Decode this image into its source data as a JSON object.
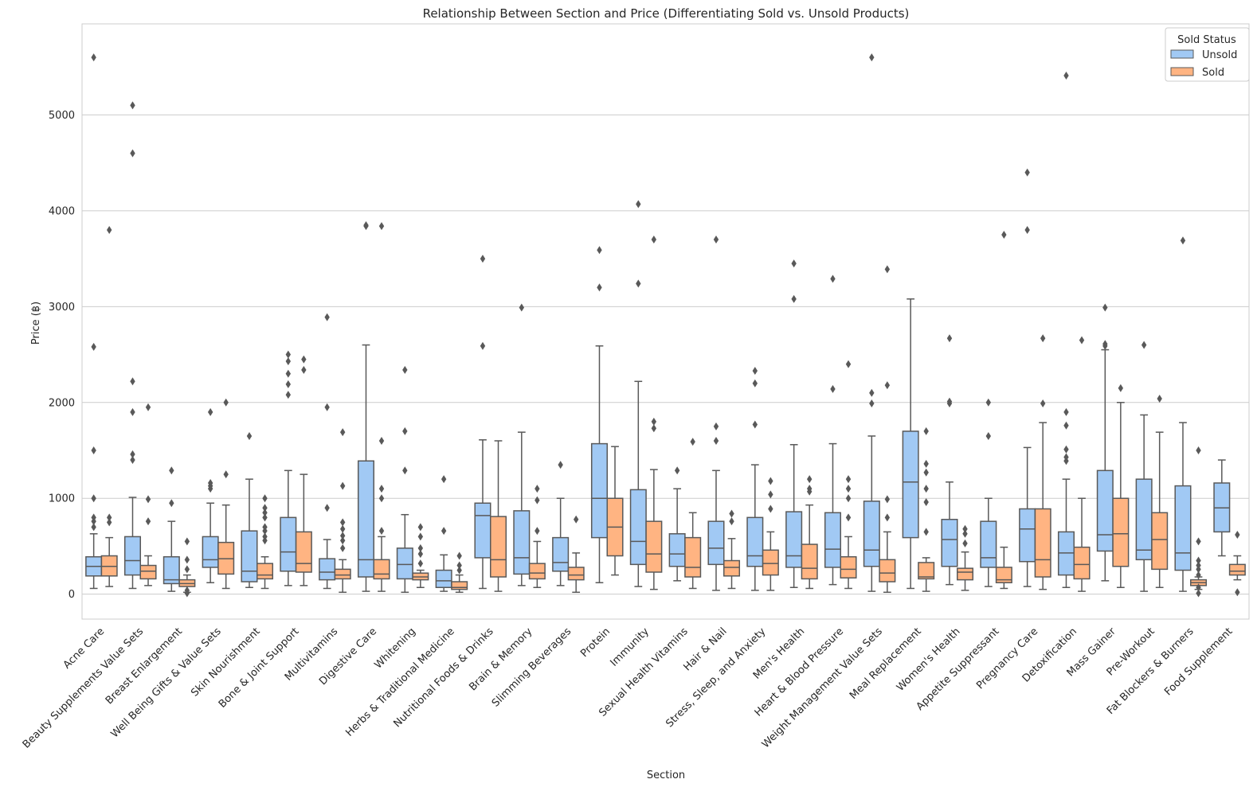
{
  "colors": {
    "unsold": "#a1c9f4",
    "sold": "#ffb482",
    "grid": "#cccccc",
    "frame": "#cccccc",
    "line": "#595959"
  },
  "chart_data": {
    "type": "box",
    "title": "Relationship Between Section and Price (Differentiating Sold vs. Unsold Products)",
    "xlabel": "Section",
    "ylabel": "Price (฿)",
    "ylim": [
      -260,
      5950
    ],
    "yticks": [
      0,
      1000,
      2000,
      3000,
      4000,
      5000
    ],
    "grid": "horizontal",
    "legend": {
      "title": "Sold Status",
      "position": "top-right",
      "entries": [
        "Unsold",
        "Sold"
      ]
    },
    "categories": [
      "Acne Care",
      "Beauty Supplements Value Sets",
      "Breast Enlargement",
      "Well Being Gifts & Value Sets",
      "Skin Nourishment",
      "Bone & Joint Support",
      "Multivitamins",
      "Digestive Care",
      "Whitening",
      "Herbs & Traditional Medicine",
      "Nutritional Foods & Drinks",
      "Brain & Memory",
      "Slimming Beverages",
      "Protein",
      "Immunity",
      "Sexual Health Vitamins",
      "Hair & Nail",
      "Stress, Sleep, and Anxiety",
      "Men's Health",
      "Heart & Blood Pressure",
      "Weight Management Value Sets",
      "Meal Replacement",
      "Women's Health",
      "Appetite Suppressant",
      "Pregnancy Care",
      "Detoxification",
      "Mass Gainer",
      "Pre-Workout",
      "Fat Blockers & Burners",
      "Food Supplement"
    ],
    "series": [
      {
        "name": "Unsold",
        "boxes": [
          {
            "min": 60,
            "q1": 190,
            "median": 290,
            "q3": 390,
            "max": 630,
            "outliers": [
              700,
              760,
              800,
              1000,
              1500,
              2580,
              5600
            ]
          },
          {
            "min": 60,
            "q1": 200,
            "median": 350,
            "q3": 600,
            "max": 1010,
            "outliers": [
              1400,
              1460,
              1900,
              2220,
              4600,
              5100
            ]
          },
          {
            "min": 30,
            "q1": 110,
            "median": 150,
            "q3": 390,
            "max": 760,
            "outliers": [
              950,
              1290
            ]
          },
          {
            "min": 120,
            "q1": 280,
            "median": 360,
            "q3": 600,
            "max": 950,
            "outliers": [
              1100,
              1130,
              1160,
              1900
            ]
          },
          {
            "min": 70,
            "q1": 130,
            "median": 240,
            "q3": 660,
            "max": 1200,
            "outliers": [
              1650
            ]
          },
          {
            "min": 90,
            "q1": 240,
            "median": 440,
            "q3": 800,
            "max": 1290,
            "outliers": [
              2080,
              2190,
              2300,
              2430,
              2500
            ]
          },
          {
            "min": 60,
            "q1": 150,
            "median": 230,
            "q3": 370,
            "max": 570,
            "outliers": [
              900,
              1950,
              2890
            ]
          },
          {
            "min": 30,
            "q1": 180,
            "median": 360,
            "q3": 1390,
            "max": 2600,
            "outliers": [
              3840,
              3850
            ]
          },
          {
            "min": 20,
            "q1": 160,
            "median": 310,
            "q3": 480,
            "max": 830,
            "outliers": [
              1290,
              1700,
              2340
            ]
          },
          {
            "min": 30,
            "q1": 70,
            "median": 140,
            "q3": 250,
            "max": 410,
            "outliers": [
              660,
              1200
            ]
          },
          {
            "min": 60,
            "q1": 380,
            "median": 820,
            "q3": 950,
            "max": 1610,
            "outliers": [
              2590,
              3500
            ]
          },
          {
            "min": 90,
            "q1": 210,
            "median": 380,
            "q3": 870,
            "max": 1690,
            "outliers": [
              2990
            ]
          },
          {
            "min": 90,
            "q1": 240,
            "median": 330,
            "q3": 590,
            "max": 1000,
            "outliers": [
              1350
            ]
          },
          {
            "min": 120,
            "q1": 590,
            "median": 1000,
            "q3": 1570,
            "max": 2590,
            "outliers": [
              3200,
              3590
            ]
          },
          {
            "min": 80,
            "q1": 310,
            "median": 550,
            "q3": 1090,
            "max": 2220,
            "outliers": [
              3240,
              4070
            ]
          },
          {
            "min": 140,
            "q1": 290,
            "median": 420,
            "q3": 630,
            "max": 1100,
            "outliers": [
              1290
            ]
          },
          {
            "min": 40,
            "q1": 310,
            "median": 480,
            "q3": 760,
            "max": 1290,
            "outliers": [
              1600,
              1750,
              3700
            ]
          },
          {
            "min": 40,
            "q1": 290,
            "median": 400,
            "q3": 800,
            "max": 1350,
            "outliers": [
              1770,
              2200,
              2330
            ]
          },
          {
            "min": 70,
            "q1": 280,
            "median": 400,
            "q3": 860,
            "max": 1560,
            "outliers": [
              3080,
              3450
            ]
          },
          {
            "min": 100,
            "q1": 280,
            "median": 470,
            "q3": 850,
            "max": 1570,
            "outliers": [
              2140,
              3290
            ]
          },
          {
            "min": 30,
            "q1": 290,
            "median": 460,
            "q3": 970,
            "max": 1650,
            "outliers": [
              1990,
              2100,
              5600
            ]
          },
          {
            "min": 60,
            "q1": 590,
            "median": 1170,
            "q3": 1700,
            "max": 3080,
            "outliers": []
          },
          {
            "min": 100,
            "q1": 290,
            "median": 570,
            "q3": 780,
            "max": 1170,
            "outliers": [
              1990,
              2010,
              2670
            ]
          },
          {
            "min": 80,
            "q1": 280,
            "median": 380,
            "q3": 760,
            "max": 1000,
            "outliers": [
              1650,
              2000
            ]
          },
          {
            "min": 80,
            "q1": 340,
            "median": 680,
            "q3": 890,
            "max": 1530,
            "outliers": [
              3800,
              4400
            ]
          },
          {
            "min": 70,
            "q1": 200,
            "median": 430,
            "q3": 650,
            "max": 1200,
            "outliers": [
              1390,
              1430,
              1510,
              1760,
              1900,
              5410
            ]
          },
          {
            "min": 140,
            "q1": 450,
            "median": 620,
            "q3": 1290,
            "max": 2550,
            "outliers": [
              2590,
              2610,
              2990
            ]
          },
          {
            "min": 30,
            "q1": 360,
            "median": 460,
            "q3": 1200,
            "max": 1870,
            "outliers": [
              2600
            ]
          },
          {
            "min": 30,
            "q1": 250,
            "median": 430,
            "q3": 1130,
            "max": 1790,
            "outliers": [
              3690
            ]
          },
          {
            "min": 400,
            "q1": 650,
            "median": 900,
            "q3": 1160,
            "max": 1400,
            "outliers": []
          }
        ]
      },
      {
        "name": "Sold",
        "boxes": [
          {
            "min": 80,
            "q1": 190,
            "median": 290,
            "q3": 400,
            "max": 590,
            "outliers": [
              750,
              800,
              3800
            ]
          },
          {
            "min": 90,
            "q1": 160,
            "median": 240,
            "q3": 300,
            "max": 400,
            "outliers": [
              760,
              990,
              1950
            ]
          },
          {
            "min": 20,
            "q1": 80,
            "median": 110,
            "q3": 150,
            "max": 200,
            "outliers": [
              10,
              40,
              260,
              360,
              550
            ]
          },
          {
            "min": 60,
            "q1": 210,
            "median": 370,
            "q3": 540,
            "max": 930,
            "outliers": [
              1250,
              2000
            ]
          },
          {
            "min": 60,
            "q1": 160,
            "median": 200,
            "q3": 320,
            "max": 390,
            "outliers": [
              560,
              600,
              660,
              700,
              800,
              850,
              900,
              1000
            ]
          },
          {
            "min": 90,
            "q1": 230,
            "median": 320,
            "q3": 650,
            "max": 1250,
            "outliers": [
              2340,
              2450
            ]
          },
          {
            "min": 20,
            "q1": 160,
            "median": 200,
            "q3": 260,
            "max": 360,
            "outliers": [
              480,
              560,
              610,
              680,
              750,
              1130,
              1690
            ]
          },
          {
            "min": 30,
            "q1": 160,
            "median": 210,
            "q3": 360,
            "max": 600,
            "outliers": [
              660,
              1000,
              1100,
              1600,
              3840
            ]
          },
          {
            "min": 70,
            "q1": 150,
            "median": 180,
            "q3": 220,
            "max": 250,
            "outliers": [
              320,
              420,
              480,
              600,
              700
            ]
          },
          {
            "min": 20,
            "q1": 50,
            "median": 70,
            "q3": 130,
            "max": 200,
            "outliers": [
              250,
              300,
              400
            ]
          },
          {
            "min": 30,
            "q1": 180,
            "median": 360,
            "q3": 810,
            "max": 1600,
            "outliers": []
          },
          {
            "min": 70,
            "q1": 160,
            "median": 220,
            "q3": 320,
            "max": 550,
            "outliers": [
              660,
              980,
              1100
            ]
          },
          {
            "min": 20,
            "q1": 150,
            "median": 200,
            "q3": 280,
            "max": 430,
            "outliers": [
              780
            ]
          },
          {
            "min": 200,
            "q1": 400,
            "median": 700,
            "q3": 1000,
            "max": 1540,
            "outliers": []
          },
          {
            "min": 50,
            "q1": 230,
            "median": 420,
            "q3": 760,
            "max": 1300,
            "outliers": [
              1730,
              1800,
              3700
            ]
          },
          {
            "min": 60,
            "q1": 180,
            "median": 280,
            "q3": 590,
            "max": 850,
            "outliers": [
              1590
            ]
          },
          {
            "min": 60,
            "q1": 190,
            "median": 280,
            "q3": 350,
            "max": 580,
            "outliers": [
              760,
              840
            ]
          },
          {
            "min": 40,
            "q1": 200,
            "median": 320,
            "q3": 460,
            "max": 650,
            "outliers": [
              890,
              1040,
              1180
            ]
          },
          {
            "min": 60,
            "q1": 160,
            "median": 270,
            "q3": 520,
            "max": 930,
            "outliers": [
              1070,
              1100,
              1200
            ]
          },
          {
            "min": 60,
            "q1": 170,
            "median": 260,
            "q3": 390,
            "max": 600,
            "outliers": [
              800,
              1000,
              1100,
              1200,
              2400
            ]
          },
          {
            "min": 20,
            "q1": 130,
            "median": 220,
            "q3": 360,
            "max": 650,
            "outliers": [
              800,
              990,
              2180,
              3390
            ]
          },
          {
            "min": 30,
            "q1": 160,
            "median": 180,
            "q3": 330,
            "max": 380,
            "outliers": [
              650,
              960,
              1100,
              1270,
              1360,
              1700
            ]
          },
          {
            "min": 40,
            "q1": 150,
            "median": 230,
            "q3": 270,
            "max": 440,
            "outliers": [
              530,
              630,
              680
            ]
          },
          {
            "min": 60,
            "q1": 120,
            "median": 150,
            "q3": 280,
            "max": 490,
            "outliers": [
              3750
            ]
          },
          {
            "min": 50,
            "q1": 180,
            "median": 360,
            "q3": 890,
            "max": 1790,
            "outliers": [
              1990,
              2670
            ]
          },
          {
            "min": 30,
            "q1": 160,
            "median": 310,
            "q3": 490,
            "max": 1000,
            "outliers": [
              2650
            ]
          },
          {
            "min": 70,
            "q1": 290,
            "median": 630,
            "q3": 1000,
            "max": 2000,
            "outliers": [
              2150
            ]
          },
          {
            "min": 70,
            "q1": 260,
            "median": 570,
            "q3": 850,
            "max": 1690,
            "outliers": [
              2040
            ]
          },
          {
            "min": 50,
            "q1": 90,
            "median": 120,
            "q3": 150,
            "max": 180,
            "outliers": [
              10,
              70,
              200,
              260,
              300,
              350,
              550,
              1500
            ]
          },
          {
            "min": 150,
            "q1": 200,
            "median": 240,
            "q3": 310,
            "max": 400,
            "outliers": [
              20,
              620
            ]
          }
        ]
      }
    ]
  }
}
